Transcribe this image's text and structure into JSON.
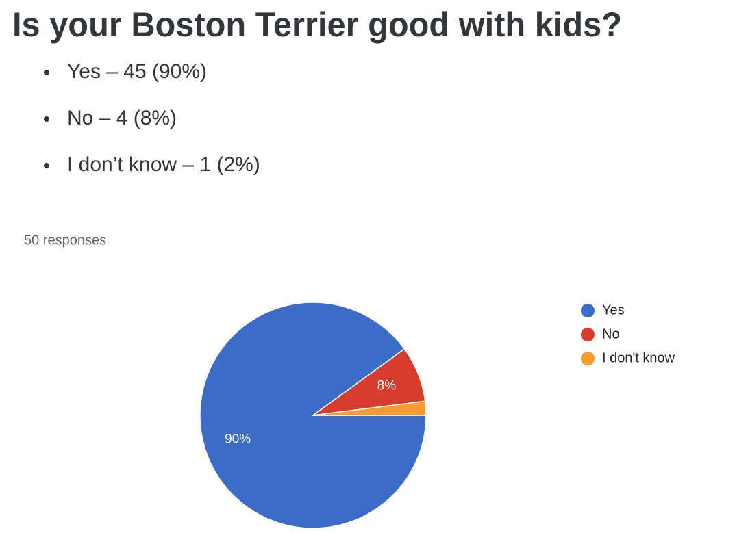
{
  "title": "Is your Boston Terrier good with kids?",
  "bullets": [
    "Yes – 45 (90%)",
    "No – 4 (8%)",
    "I don’t know – 1 (2%)"
  ],
  "chart_data": {
    "type": "pie",
    "subtitle": "50 responses",
    "categories": [
      "Yes",
      "No",
      "I don't know"
    ],
    "values": [
      90,
      8,
      2
    ],
    "value_labels": [
      "90%",
      "8%",
      null
    ],
    "colors": [
      "#3a6cc8",
      "#d63d2c",
      "#f89c32"
    ],
    "legend": "right"
  }
}
